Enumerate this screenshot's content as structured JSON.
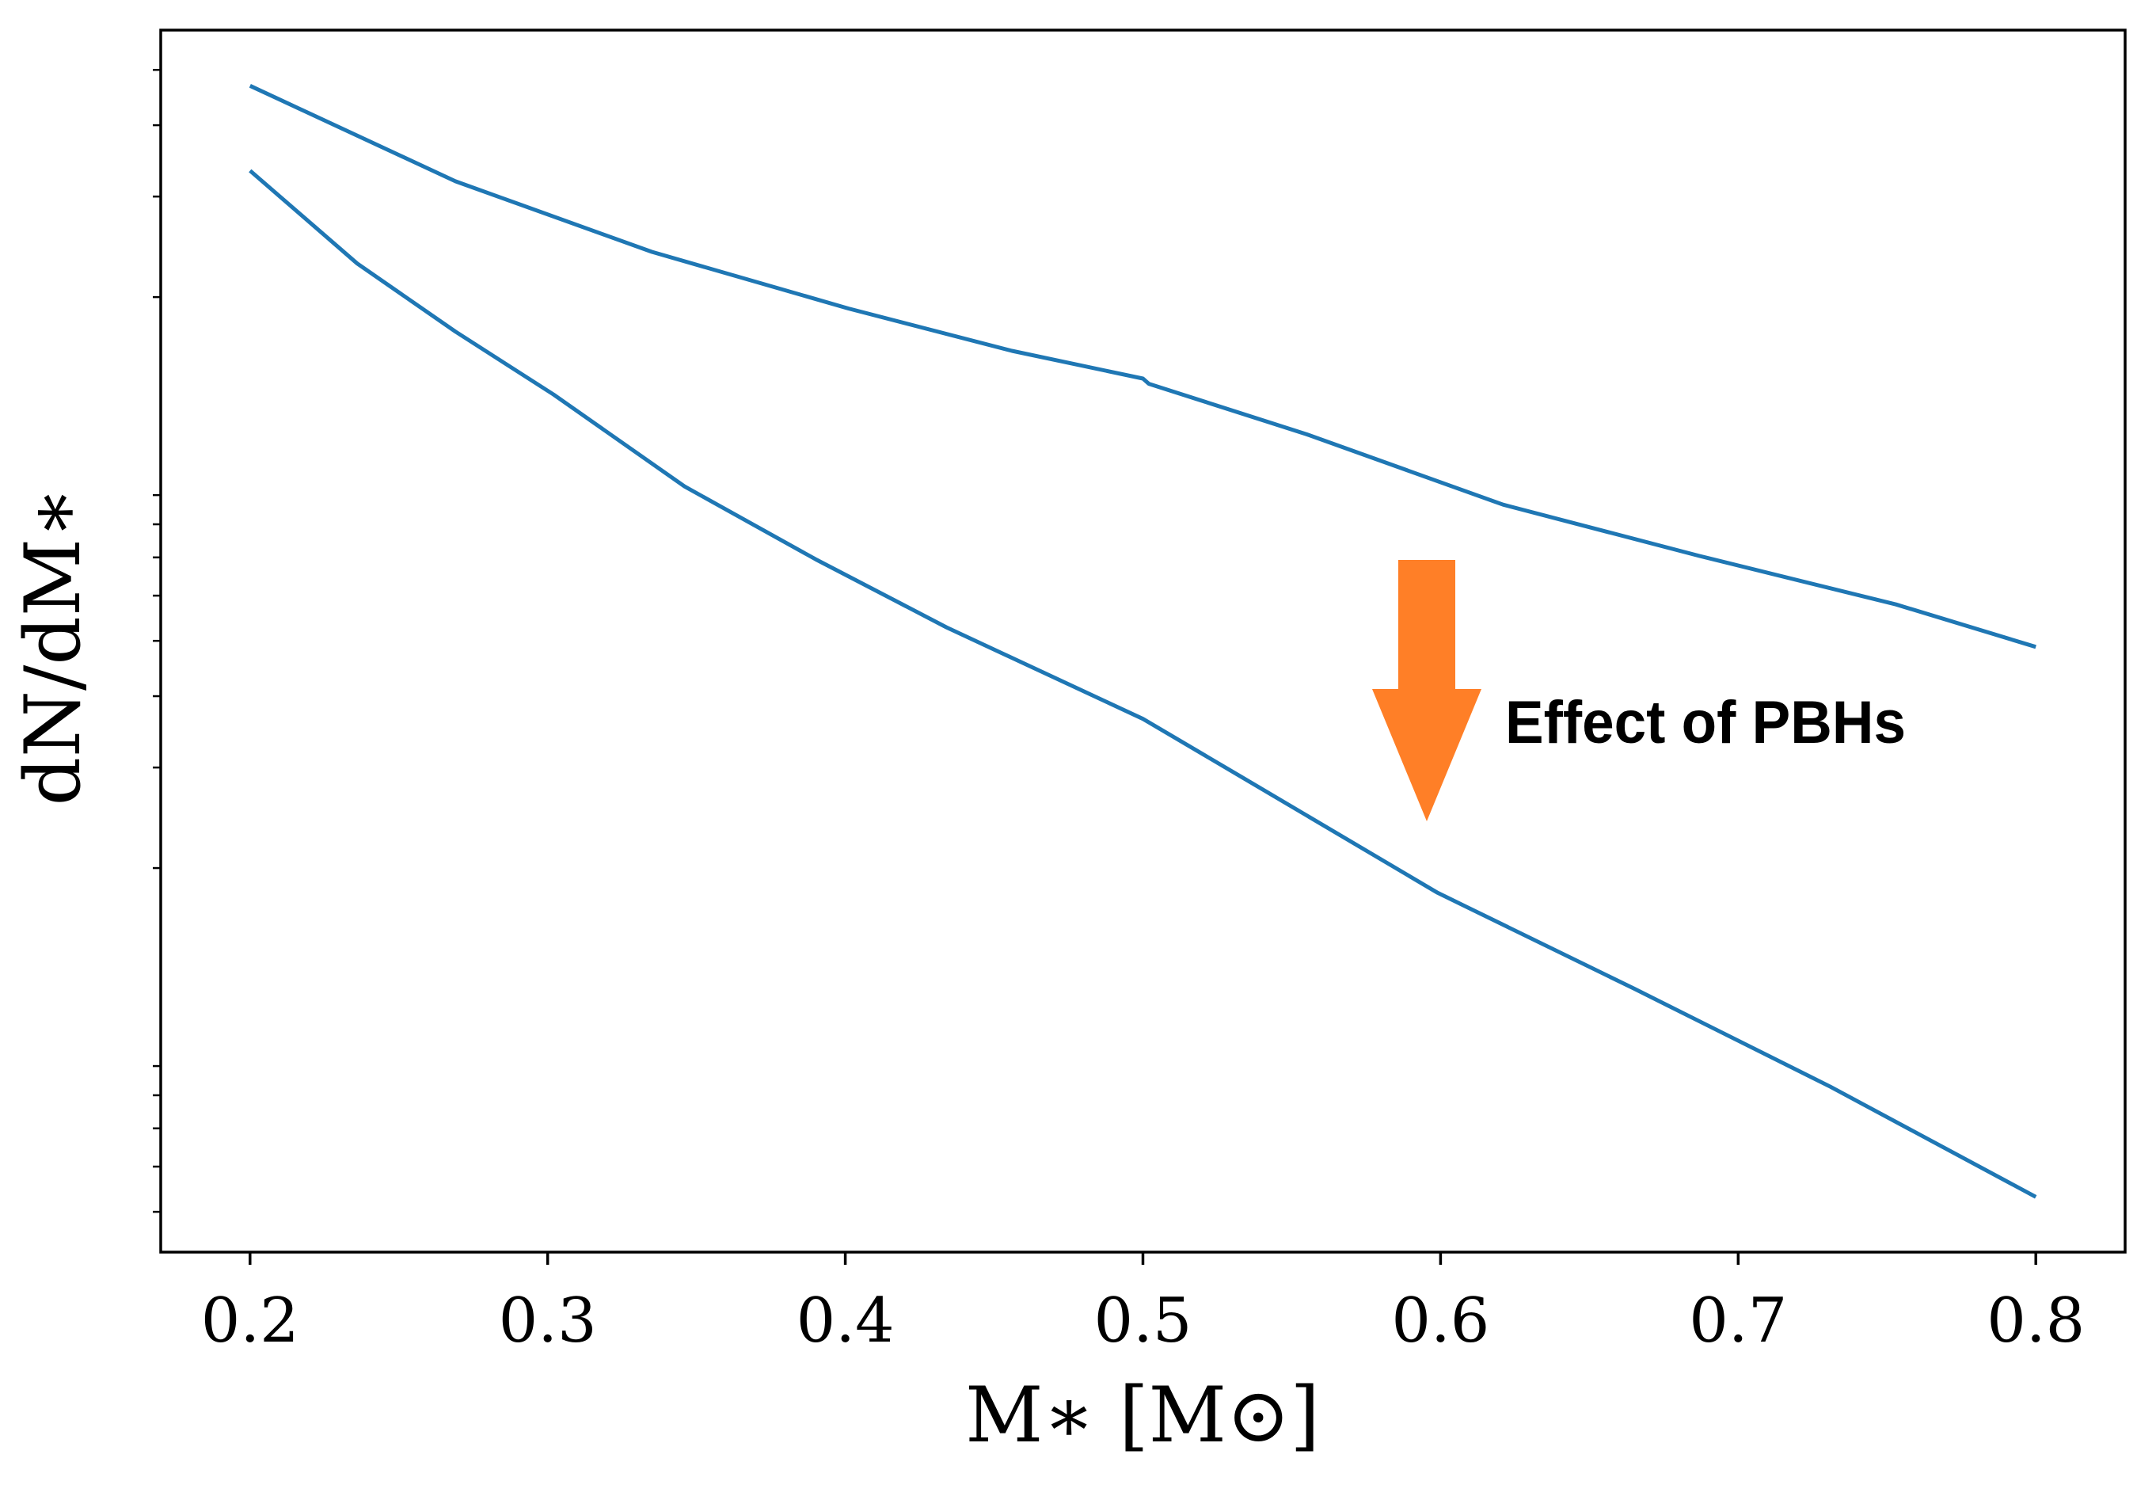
{
  "chart_data": {
    "type": "line",
    "title": "",
    "xlabel": "M∗ [M⊙]",
    "ylabel": "dN/dM∗",
    "xlim": [
      0.17,
      0.83
    ],
    "ylim": [
      0.0425,
      5.87
    ],
    "yscale": "log",
    "y_tick_labels_shown": false,
    "grid": false,
    "x_ticks": [
      0.2,
      0.3,
      0.4,
      0.5,
      0.6,
      0.7,
      0.8
    ],
    "x_tick_labels": [
      "0.2",
      "0.3",
      "0.4",
      "0.5",
      "0.6",
      "0.7",
      "0.8"
    ],
    "y_minor_ticks": [
      5,
      4,
      3,
      2,
      0.9,
      0.8,
      0.7,
      0.6,
      0.5,
      0.4,
      0.3,
      0.2,
      0.09,
      0.08,
      0.07,
      0.06,
      0.05
    ],
    "series": [
      {
        "color": "#1f77b4",
        "x": [
          0.2,
          0.269,
          0.335,
          0.401,
          0.456,
          0.5,
          0.502,
          0.555,
          0.621,
          0.687,
          0.753,
          0.8
        ],
        "y": [
          4.69,
          3.19,
          2.4,
          1.91,
          1.61,
          1.44,
          1.41,
          1.15,
          0.866,
          0.704,
          0.579,
          0.488
        ]
      },
      {
        "color": "#1f77b4",
        "x": [
          0.2,
          0.236,
          0.269,
          0.302,
          0.346,
          0.39,
          0.434,
          0.5,
          0.533,
          0.599,
          0.665,
          0.731,
          0.8
        ],
        "y": [
          3.33,
          2.29,
          1.74,
          1.35,
          0.932,
          0.695,
          0.528,
          0.365,
          0.289,
          0.181,
          0.123,
          0.0828,
          0.0531
        ]
      }
    ],
    "annotation": {
      "text": "Effect of PBHs",
      "arrow_color": "#ff7f27",
      "arrow_direction": "down"
    }
  }
}
